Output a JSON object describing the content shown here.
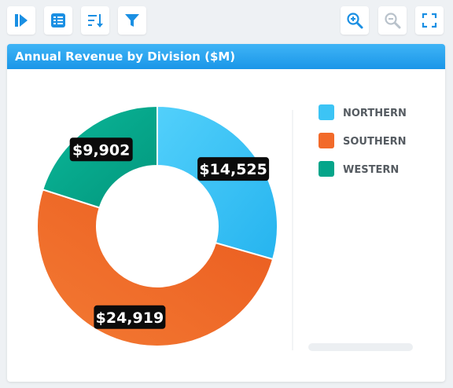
{
  "toolbar": {
    "buttons_left": [
      {
        "name": "play-icon"
      },
      {
        "name": "list-view-icon"
      },
      {
        "name": "sort-icon"
      },
      {
        "name": "filter-icon"
      }
    ],
    "buttons_right": [
      {
        "name": "zoom-in-icon"
      },
      {
        "name": "zoom-out-icon"
      },
      {
        "name": "fullscreen-icon"
      }
    ],
    "accent_color": "#1a8fe3"
  },
  "panel": {
    "title": "Annual Revenue by Division ($M)"
  },
  "chart_data": {
    "type": "pie",
    "variant": "donut",
    "title": "Annual Revenue by Division ($M)",
    "categories": [
      "NORTHERN",
      "SOUTHERN",
      "WESTERN"
    ],
    "values": [
      14525,
      24919,
      9902
    ],
    "data_labels": [
      "$14,525",
      "$24,919",
      "$9,902"
    ],
    "colors": [
      "#3cc4f5",
      "#f26a2a",
      "#05a58a"
    ],
    "legend_position": "right"
  }
}
